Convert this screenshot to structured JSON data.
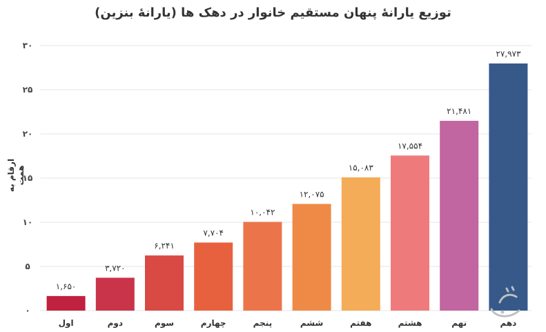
{
  "chart_data": {
    "type": "bar",
    "title": "توزیع یارانهٔ پنهان مستقیم  خانوار در دهک ها (یارانهٔ بنزین)",
    "ylabel": "ارقام به همت",
    "xlabel": "",
    "ylim": [
      0,
      30
    ],
    "yticks": [
      {
        "value": 0,
        "label": "۰"
      },
      {
        "value": 5,
        "label": "۵"
      },
      {
        "value": 10,
        "label": "۱۰"
      },
      {
        "value": 15,
        "label": "۱۵"
      },
      {
        "value": 20,
        "label": "۲۰"
      },
      {
        "value": 25,
        "label": "۲۵"
      },
      {
        "value": 30,
        "label": "۳۰"
      }
    ],
    "categories": [
      "اول",
      "دوم",
      "سوم",
      "چهارم",
      "پنجم",
      "ششم",
      "هفتم",
      "هشتم",
      "نهم",
      "دهم"
    ],
    "values": [
      1.65,
      3.72,
      6.241,
      7.704,
      10.042,
      12.075,
      15.083,
      17.554,
      21.481,
      27.973
    ],
    "value_labels": [
      "۱,۶۵۰",
      "۳,۷۲۰",
      "۶,۲۴۱",
      "۷,۷۰۴",
      "۱۰,۰۴۲",
      "۱۲,۰۷۵",
      "۱۵,۰۸۳",
      "۱۷,۵۵۴",
      "۲۱,۴۸۱",
      "۲۷,۹۷۳"
    ],
    "colors": [
      "#c0213f",
      "#c9344a",
      "#d94a44",
      "#e8613f",
      "#ec744a",
      "#ee8a46",
      "#f4ac59",
      "#ef7a7c",
      "#c166a0",
      "#36598a"
    ],
    "grid": true
  }
}
